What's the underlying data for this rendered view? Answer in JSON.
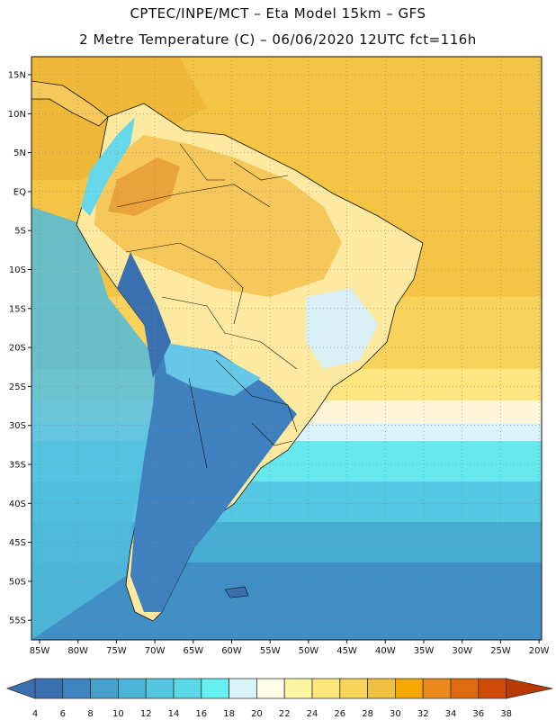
{
  "header": {
    "line1": "CPTEC/INPE/MCT –  Eta Model 15km – GFS",
    "line2": "2 Metre Temperature (C) – 06/06/2020 12UTC fct=116h"
  },
  "map": {
    "lat_labels": [
      "15N",
      "10N",
      "5N",
      "EQ",
      "5S",
      "10S",
      "15S",
      "20S",
      "25S",
      "30S",
      "35S",
      "40S",
      "45S",
      "50S",
      "55S"
    ],
    "lon_labels": [
      "85W",
      "80W",
      "75W",
      "70W",
      "65W",
      "60W",
      "55W",
      "50W",
      "45W",
      "40W",
      "35W",
      "30W",
      "25W",
      "20W"
    ]
  },
  "colorbar": {
    "labels": [
      "4",
      "6",
      "8",
      "10",
      "12",
      "14",
      "16",
      "18",
      "20",
      "22",
      "24",
      "26",
      "28",
      "30",
      "32",
      "34",
      "36",
      "38"
    ],
    "colors": [
      "#3a6fb0",
      "#3f85bf",
      "#46a0cc",
      "#4cb4d8",
      "#54c6e0",
      "#5ad8e6",
      "#66f0f0",
      "#d8f4fa",
      "#fffbe6",
      "#fff5a0",
      "#ffe67a",
      "#f8d45a",
      "#f0c040",
      "#f4a800",
      "#ec8a1e",
      "#e06a10",
      "#d04a08",
      "#b83a00"
    ]
  }
}
